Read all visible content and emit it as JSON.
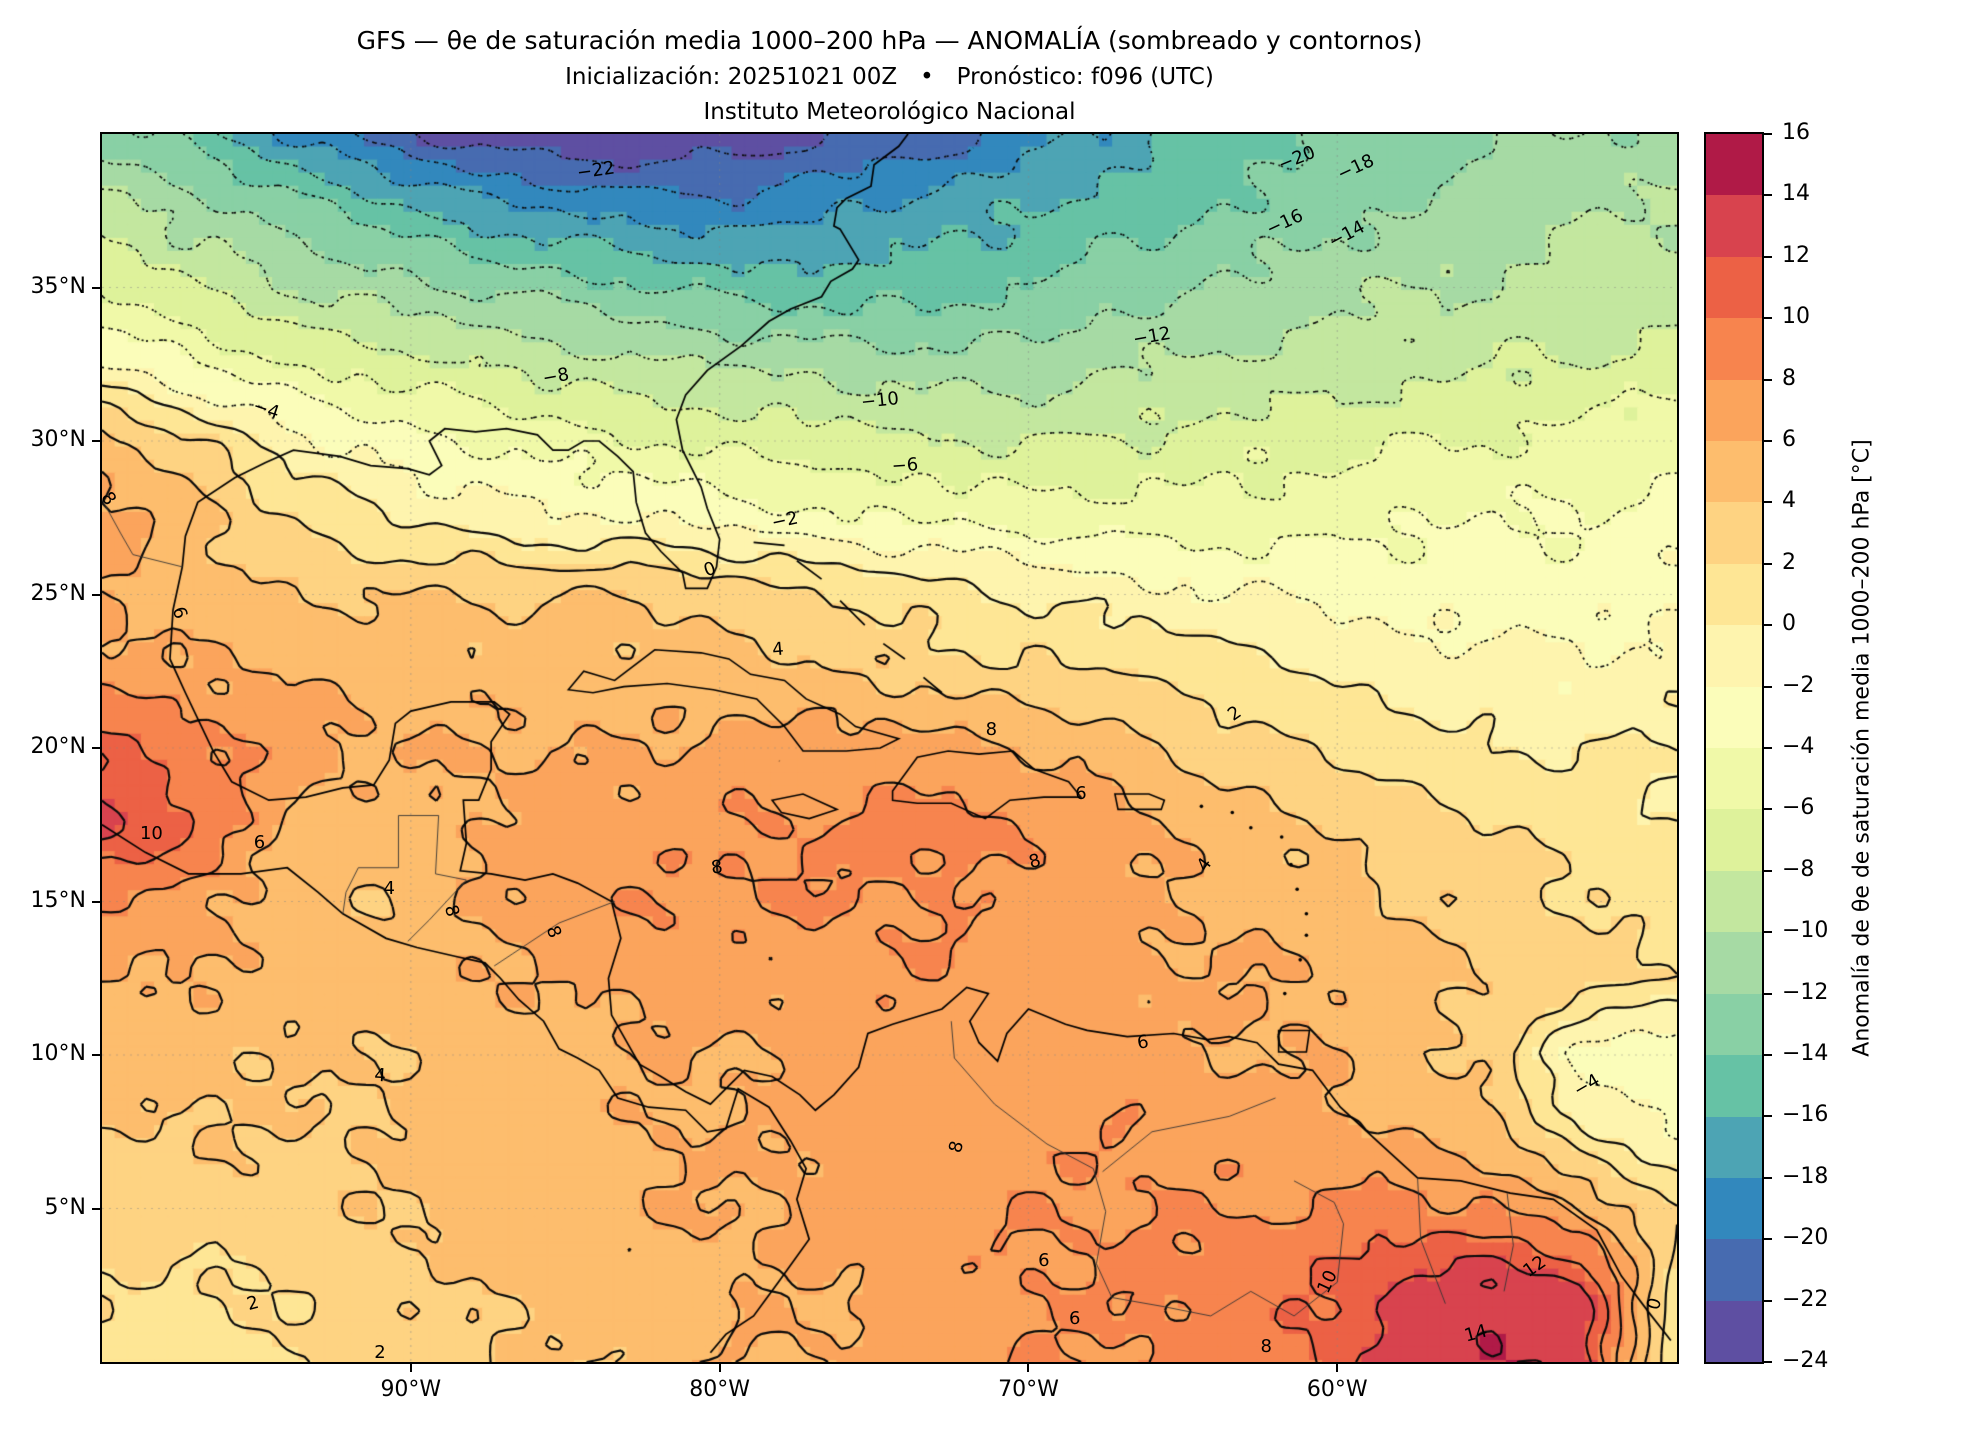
{
  "title": {
    "line1": "GFS — θe de saturación media 1000–200 hPa — ANOMALÍA (sombreado y contornos)",
    "line2": "Inicialización: 20251021 00Z • Pronóstico: f096 (UTC)",
    "line3": "Instituto Meteorológico Nacional"
  },
  "axes": {
    "lon_range": [
      -100,
      -49
    ],
    "lat_range": [
      0,
      40
    ],
    "x_ticks": [
      {
        "label": "90°W",
        "lon": -90
      },
      {
        "label": "80°W",
        "lon": -80
      },
      {
        "label": "70°W",
        "lon": -70
      },
      {
        "label": "60°W",
        "lon": -60
      }
    ],
    "y_ticks": [
      {
        "label": "35°N",
        "lat": 35
      },
      {
        "label": "30°N",
        "lat": 30
      },
      {
        "label": "25°N",
        "lat": 25
      },
      {
        "label": "20°N",
        "lat": 20
      },
      {
        "label": "15°N",
        "lat": 15
      },
      {
        "label": "10°N",
        "lat": 10
      },
      {
        "label": "5°N",
        "lat": 5
      }
    ]
  },
  "colorbar": {
    "label": "Anomalía de θe de saturación media 1000–200 hPa [°C]",
    "min": -24,
    "max": 16,
    "interval": 2,
    "ticks": [
      {
        "label": "16",
        "value": 16
      },
      {
        "label": "14",
        "value": 14
      },
      {
        "label": "12",
        "value": 12
      },
      {
        "label": "10",
        "value": 10
      },
      {
        "label": "8",
        "value": 8
      },
      {
        "label": "6",
        "value": 6
      },
      {
        "label": "4",
        "value": 4
      },
      {
        "label": "2",
        "value": 2
      },
      {
        "label": "0",
        "value": 0
      },
      {
        "label": "−2",
        "value": -2
      },
      {
        "label": "−4",
        "value": -4
      },
      {
        "label": "−6",
        "value": -6
      },
      {
        "label": "−8",
        "value": -8
      },
      {
        "label": "−10",
        "value": -10
      },
      {
        "label": "−12",
        "value": -12
      },
      {
        "label": "−14",
        "value": -14
      },
      {
        "label": "−16",
        "value": -16
      },
      {
        "label": "−18",
        "value": -18
      },
      {
        "label": "−20",
        "value": -20
      },
      {
        "label": "−22",
        "value": -22
      },
      {
        "label": "−24",
        "value": -24
      }
    ],
    "colors_low_to_high": [
      "#5e4fa2",
      "#476bb0",
      "#3288bd",
      "#4da4b4",
      "#66c2a5",
      "#89d0a5",
      "#a6daa4",
      "#c3e79f",
      "#def29b",
      "#f0f9a8",
      "#fbfdba",
      "#fef4ae",
      "#fee695",
      "#fed382",
      "#fdbd6d",
      "#fba45c",
      "#f7844e",
      "#ec6145",
      "#d8434e",
      "#b01a47"
    ]
  },
  "chart_data": {
    "type": "heatmap",
    "title": "GFS — θe de saturación media 1000–200 hPa — ANOMALÍA (sombreado y contornos)",
    "units": "°C",
    "shading": "filled contours every 2°C, Spectral reversed colormap",
    "contour_interval": 2,
    "contour_min": -22,
    "contour_max": 14,
    "negative_contour_style": "dotted",
    "zero_positive_contour_style": "solid",
    "lons": [
      -100,
      -97,
      -94,
      -91,
      -88,
      -85,
      -82,
      -79,
      -76,
      -73,
      -70,
      -67,
      -64,
      -61,
      -58,
      -55,
      -52,
      -49
    ],
    "lats": [
      40,
      37.5,
      35,
      32.5,
      30,
      27.5,
      25,
      22.5,
      20,
      17.5,
      15,
      12.5,
      10,
      7.5,
      5,
      2.5,
      0
    ],
    "values": [
      [
        -13,
        -15,
        -18,
        -21,
        -23,
        -24,
        -24,
        -23,
        -22,
        -21,
        -19,
        -17,
        -15,
        -14,
        -13,
        -12,
        -12,
        -11
      ],
      [
        -9,
        -11,
        -13,
        -15,
        -17,
        -18,
        -19,
        -19,
        -18,
        -17,
        -16,
        -15,
        -14,
        -13,
        -12,
        -11,
        -10,
        -10
      ],
      [
        -6,
        -8,
        -10,
        -11,
        -12,
        -13,
        -14,
        -15,
        -15,
        -15,
        -14,
        -13,
        -12,
        -11,
        -10,
        -10,
        -9,
        -9
      ],
      [
        -2,
        -4,
        -6,
        -7,
        -8,
        -9,
        -10,
        -10,
        -11,
        -11,
        -11,
        -10,
        -10,
        -9,
        -9,
        -8,
        -8,
        -7
      ],
      [
        5,
        2,
        -1,
        -3,
        -4,
        -5,
        -6,
        -7,
        -7,
        -8,
        -8,
        -8,
        -7,
        -7,
        -6,
        -6,
        -5,
        -5
      ],
      [
        7,
        5,
        2,
        0,
        -1,
        -2,
        -2,
        -3,
        -4,
        -4,
        -5,
        -5,
        -5,
        -5,
        -4,
        -4,
        -4,
        -3
      ],
      [
        6,
        5,
        4,
        4,
        4,
        4,
        4,
        3,
        2,
        1,
        0,
        -1,
        -2,
        -2,
        -3,
        -3,
        -3,
        -2
      ],
      [
        7,
        6,
        6,
        5,
        5,
        5,
        5,
        5,
        4,
        3,
        2,
        2,
        1,
        0,
        -1,
        -1,
        -2,
        -1
      ],
      [
        11,
        9,
        7,
        6,
        6,
        6,
        6,
        7,
        7,
        7,
        6,
        5,
        3,
        2,
        1,
        0,
        0,
        0
      ],
      [
        13,
        10,
        6,
        5,
        6,
        7,
        7,
        8,
        8,
        9,
        8,
        7,
        5,
        4,
        3,
        2,
        1,
        0
      ],
      [
        8,
        7,
        5,
        4,
        6,
        7,
        8,
        8,
        8,
        8,
        7,
        6,
        6,
        5,
        4,
        3,
        2,
        1
      ],
      [
        6,
        6,
        5,
        5,
        6,
        6,
        7,
        7,
        7,
        8,
        7,
        7,
        6,
        6,
        5,
        4,
        3,
        2
      ],
      [
        5,
        5,
        4,
        4,
        5,
        5,
        6,
        6,
        7,
        7,
        7,
        7,
        6,
        6,
        5,
        3,
        -3,
        -4
      ],
      [
        4,
        4,
        4,
        4,
        5,
        5,
        6,
        6,
        7,
        7,
        7,
        8,
        7,
        7,
        6,
        5,
        0,
        -2
      ],
      [
        3,
        3,
        3,
        4,
        5,
        5,
        6,
        6,
        7,
        7,
        8,
        8,
        8,
        8,
        9,
        8,
        6,
        2
      ],
      [
        2,
        2,
        2,
        3,
        4,
        5,
        5,
        6,
        6,
        7,
        8,
        8,
        9,
        10,
        12,
        14,
        12,
        1
      ],
      [
        1,
        1,
        2,
        3,
        4,
        4,
        5,
        6,
        6,
        7,
        8,
        8,
        9,
        10,
        13,
        14,
        13,
        0
      ]
    ]
  },
  "contour_labels": [
    {
      "lon": -84.0,
      "lat": 38.8,
      "text": "−22",
      "rot": -8
    },
    {
      "lon": -61.3,
      "lat": 39.2,
      "text": "−20",
      "rot": -22
    },
    {
      "lon": -59.4,
      "lat": 38.9,
      "text": "−18",
      "rot": -25
    },
    {
      "lon": -61.7,
      "lat": 37.1,
      "text": "−16",
      "rot": -25
    },
    {
      "lon": -59.7,
      "lat": 36.7,
      "text": "−14",
      "rot": -28
    },
    {
      "lon": -66.0,
      "lat": 33.4,
      "text": "−12",
      "rot": -10
    },
    {
      "lon": -74.8,
      "lat": 31.3,
      "text": "−10",
      "rot": -6
    },
    {
      "lon": -85.3,
      "lat": 32.1,
      "text": "−8",
      "rot": -10
    },
    {
      "lon": -74.0,
      "lat": 29.2,
      "text": "−6",
      "rot": -4
    },
    {
      "lon": -94.7,
      "lat": 31.0,
      "text": "−4",
      "rot": 18
    },
    {
      "lon": -77.9,
      "lat": 27.4,
      "text": "−2",
      "rot": -12
    },
    {
      "lon": -80.3,
      "lat": 25.8,
      "text": "0",
      "rot": -20
    },
    {
      "lon": -63.3,
      "lat": 21.1,
      "text": "2",
      "rot": -35
    },
    {
      "lon": -78.1,
      "lat": 23.2,
      "text": "4",
      "rot": -5
    },
    {
      "lon": -97.5,
      "lat": 24.4,
      "text": "6",
      "rot": 72
    },
    {
      "lon": -99.8,
      "lat": 28.1,
      "text": "8",
      "rot": 55
    },
    {
      "lon": -98.4,
      "lat": 17.2,
      "text": "10",
      "rot": 0
    },
    {
      "lon": -94.9,
      "lat": 16.9,
      "text": "6",
      "rot": 0
    },
    {
      "lon": -90.7,
      "lat": 15.4,
      "text": "4",
      "rot": 0
    },
    {
      "lon": -88.7,
      "lat": 14.7,
      "text": "8",
      "rot": 75
    },
    {
      "lon": -85.4,
      "lat": 14.0,
      "text": "8",
      "rot": 70
    },
    {
      "lon": -80.1,
      "lat": 16.1,
      "text": "8",
      "rot": -8
    },
    {
      "lon": -71.2,
      "lat": 20.6,
      "text": "8",
      "rot": 0
    },
    {
      "lon": -69.8,
      "lat": 16.3,
      "text": "8",
      "rot": -15
    },
    {
      "lon": -68.3,
      "lat": 18.5,
      "text": "6",
      "rot": 0
    },
    {
      "lon": -64.3,
      "lat": 16.2,
      "text": "4",
      "rot": -55
    },
    {
      "lon": -91.0,
      "lat": 9.3,
      "text": "4",
      "rot": 4
    },
    {
      "lon": -66.3,
      "lat": 10.4,
      "text": "6",
      "rot": -8
    },
    {
      "lon": -72.3,
      "lat": 7.0,
      "text": "8",
      "rot": -75
    },
    {
      "lon": -51.9,
      "lat": 9.0,
      "text": "−4",
      "rot": -30
    },
    {
      "lon": -60.3,
      "lat": 2.6,
      "text": "10",
      "rot": -65
    },
    {
      "lon": -53.6,
      "lat": 3.1,
      "text": "12",
      "rot": -35
    },
    {
      "lon": -55.5,
      "lat": 0.9,
      "text": "14",
      "rot": -15
    },
    {
      "lon": -62.3,
      "lat": 0.5,
      "text": "8",
      "rot": 0
    },
    {
      "lon": -68.5,
      "lat": 1.4,
      "text": "6",
      "rot": 0
    },
    {
      "lon": -69.5,
      "lat": 3.3,
      "text": "6",
      "rot": 0
    },
    {
      "lon": -95.1,
      "lat": 1.9,
      "text": "2",
      "rot": -15
    },
    {
      "lon": -91.0,
      "lat": 0.3,
      "text": "2",
      "rot": 0
    },
    {
      "lon": -49.7,
      "lat": 1.9,
      "text": "0",
      "rot": -75
    }
  ]
}
